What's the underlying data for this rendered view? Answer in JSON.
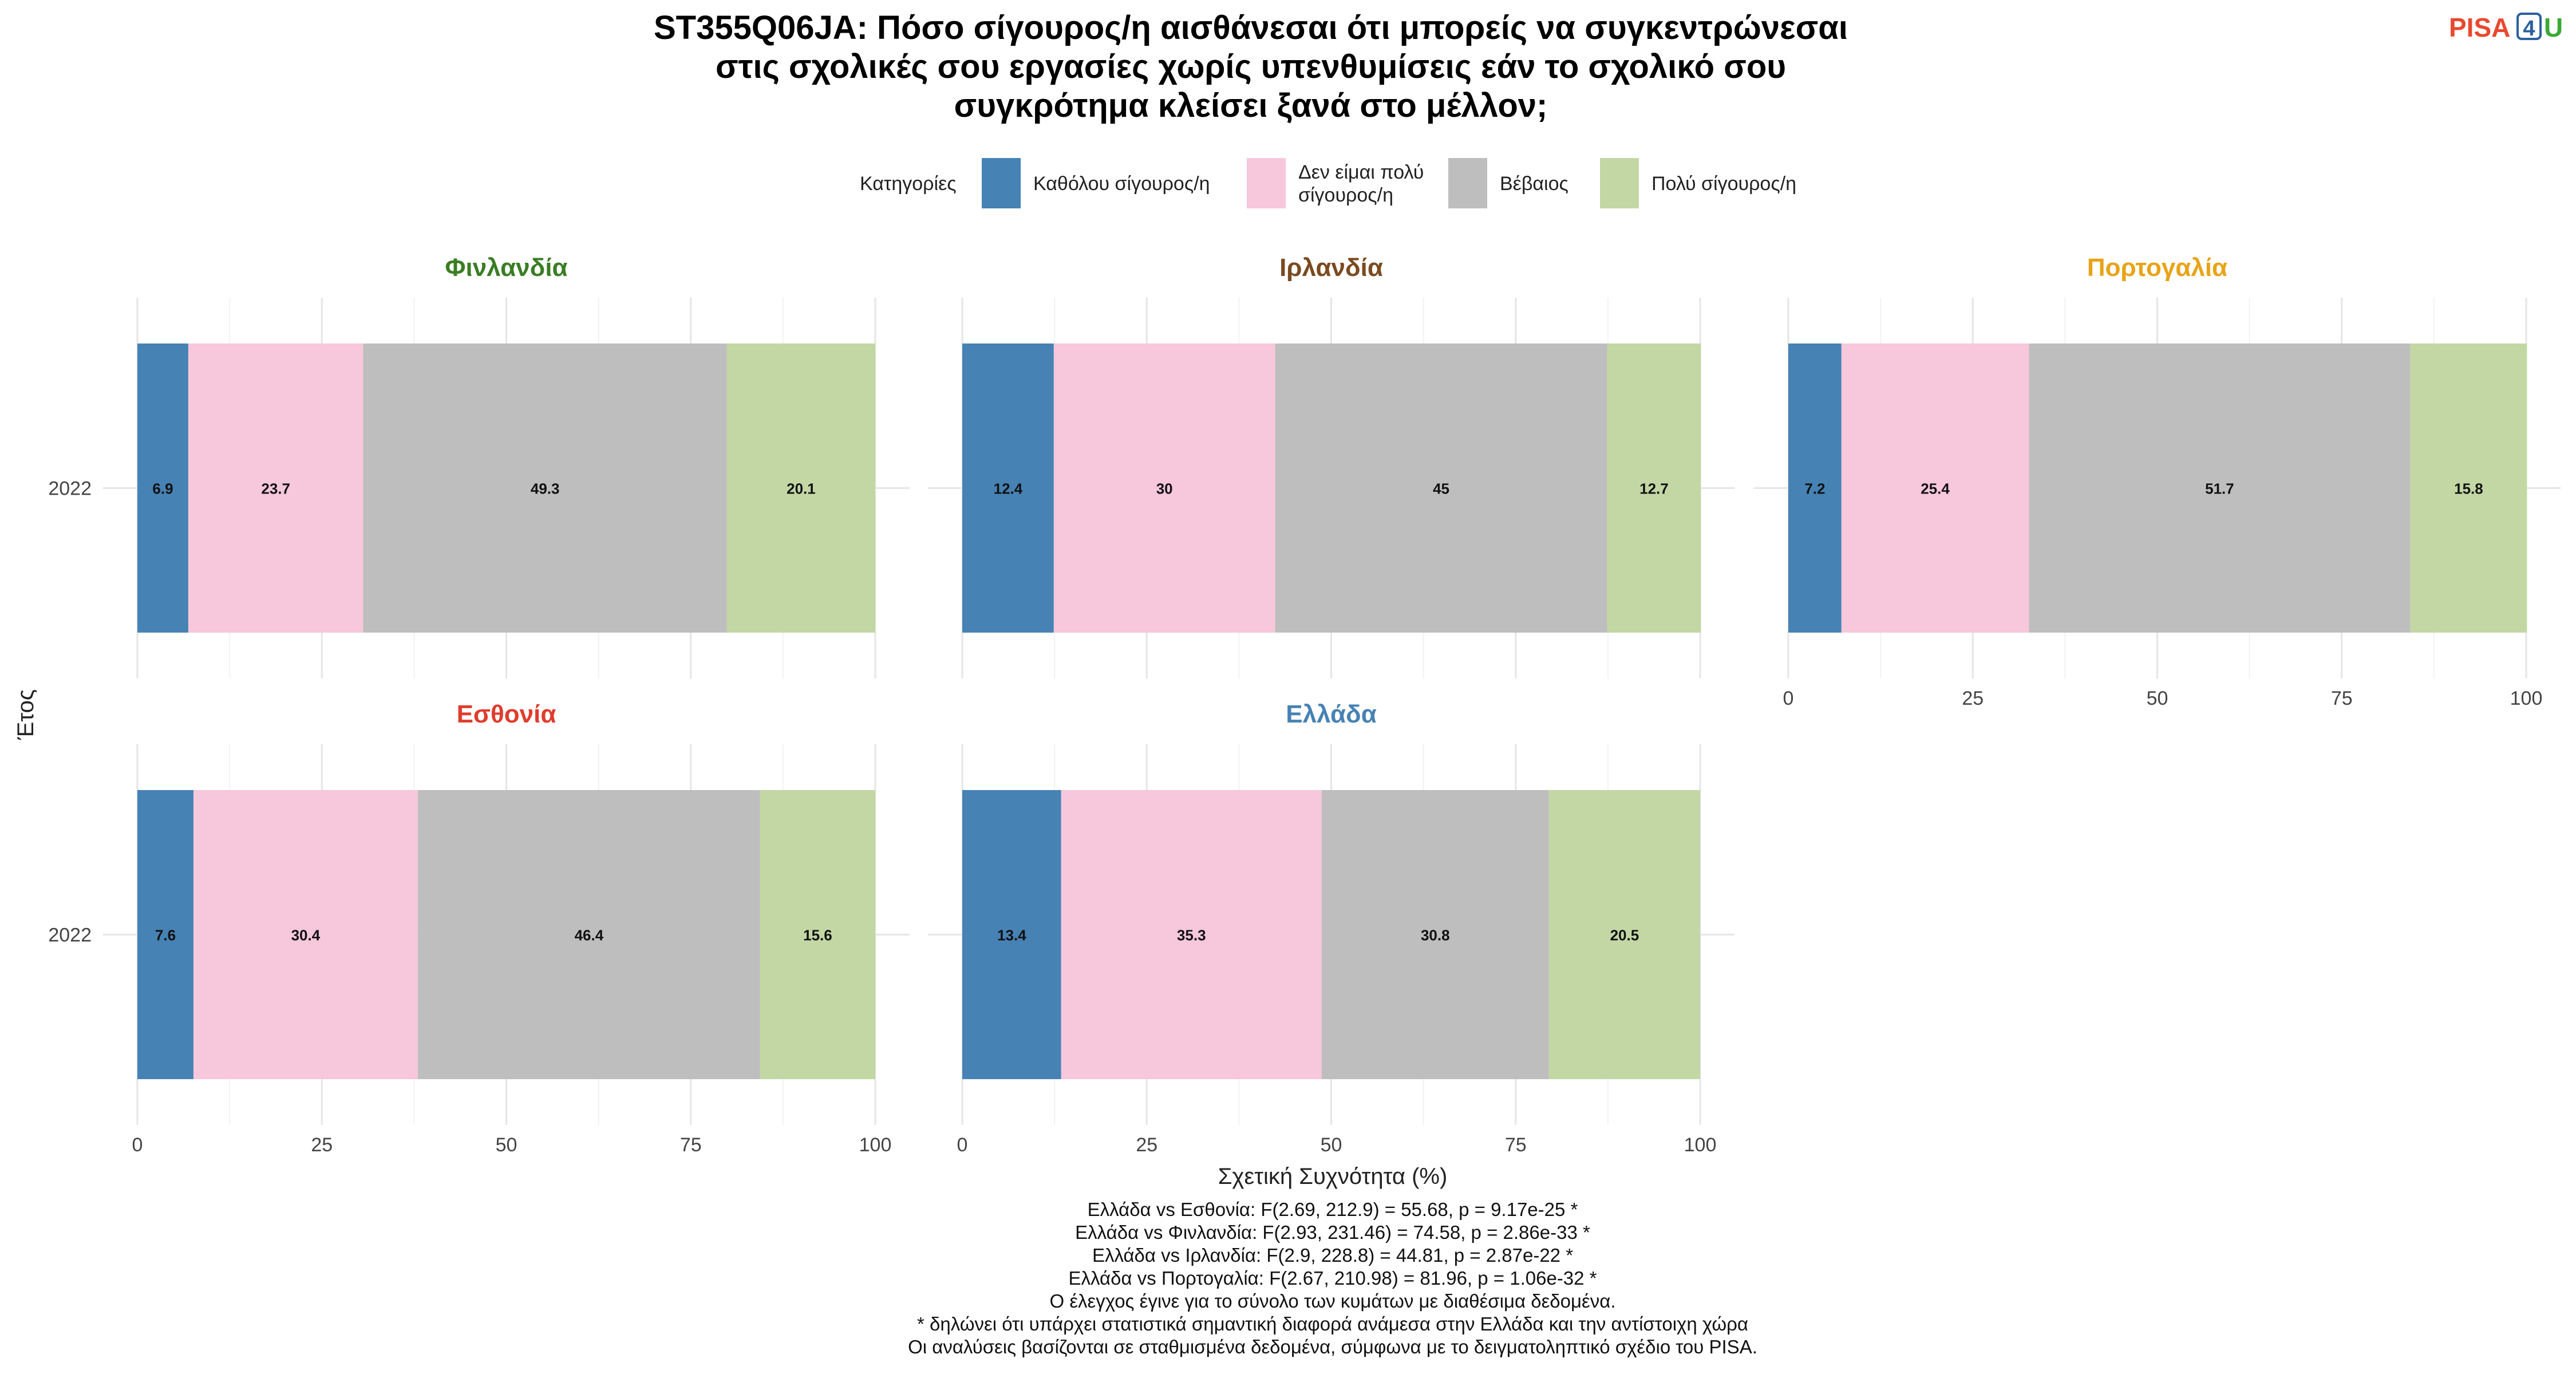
{
  "title": {
    "lines": [
      "ST355Q06JA: Πόσο σίγουρος/η αισθάνεσαι ότι μπορείς να συγκεντρώνεσαι",
      "στις σχολικές σου εργασίες χωρίς υπενθυμίσεις εάν το σχολικό σου",
      "συγκρότημα κλείσει ξανά στο μέλλον;"
    ]
  },
  "logo": {
    "text": "PISA",
    "digit": "4",
    "letter": "U",
    "colors": {
      "pisa": "#e8492f",
      "digit": "#2c5f9e",
      "letter": "#3aa935"
    }
  },
  "legend": {
    "title": "Κατηγορίες",
    "items": [
      {
        "label_lines": [
          "Καθόλου σίγουρος/η"
        ],
        "color": "#4682b4"
      },
      {
        "label_lines": [
          "Δεν είμαι πολύ",
          "σίγουρος/η"
        ],
        "color": "#f7c7dc"
      },
      {
        "label_lines": [
          "Βέβαιος"
        ],
        "color": "#bebebe"
      },
      {
        "label_lines": [
          "Πολύ σίγουρος/η"
        ],
        "color": "#c3d7a4"
      }
    ]
  },
  "axes": {
    "xlabel": "Σχετική Συχνότητα (%)",
    "ylabel": "Έτος",
    "xticks": [
      "0",
      "25",
      "50",
      "75",
      "100"
    ]
  },
  "chart_data": {
    "type": "bar",
    "orientation": "horizontal",
    "stacked": true,
    "xlim": [
      0,
      100
    ],
    "series_names": [
      "Καθόλου σίγουρος/η",
      "Δεν είμαι πολύ σίγουρος/η",
      "Βέβαιος",
      "Πολύ σίγουρος/η"
    ],
    "panels": [
      {
        "country": "Φινλανδία",
        "title_color": "#3a7d24",
        "year": "2022",
        "values": [
          6.9,
          23.7,
          49.3,
          20.1
        ],
        "labels": [
          "6.9",
          "23.7",
          "49.3",
          "20.1"
        ]
      },
      {
        "country": "Ιρλανδία",
        "title_color": "#7a4a1f",
        "year": "2022",
        "values": [
          12.4,
          30,
          45,
          12.7
        ],
        "labels": [
          "12.4",
          "30",
          "45",
          "12.7"
        ]
      },
      {
        "country": "Πορτογαλία",
        "title_color": "#e8a317",
        "year": "2022",
        "values": [
          7.2,
          25.4,
          51.7,
          15.8
        ],
        "labels": [
          "7.2",
          "25.4",
          "51.7",
          "15.8"
        ]
      },
      {
        "country": "Εσθονία",
        "title_color": "#e03c2d",
        "year": "2022",
        "values": [
          7.6,
          30.4,
          46.4,
          15.6
        ],
        "labels": [
          "7.6",
          "30.4",
          "46.4",
          "15.6"
        ]
      },
      {
        "country": "Ελλάδα",
        "title_color": "#4682b4",
        "year": "2022",
        "values": [
          13.4,
          35.3,
          30.8,
          20.5
        ],
        "labels": [
          "13.4",
          "35.3",
          "30.8",
          "20.5"
        ]
      }
    ]
  },
  "footnotes": [
    "Ελλάδα vs Εσθονία: F(2.69, 212.9) = 55.68, p = 9.17e-25 *",
    "Ελλάδα vs Φινλανδία: F(2.93, 231.46) = 74.58, p = 2.86e-33 *",
    "Ελλάδα vs Ιρλανδία: F(2.9, 228.8) = 44.81, p = 2.87e-22 *",
    "Ελλάδα vs Πορτογαλία: F(2.67, 210.98) = 81.96, p = 1.06e-32 *",
    "Ο έλεγχος έγινε για το σύνολο των κυμάτων με διαθέσιμα δεδομένα.",
    "* δηλώνει ότι υπάρχει στατιστικά σημαντική διαφορά ανάμεσα στην Ελλάδα και την αντίστοιχη χώρα",
    "Οι αναλύσεις βασίζονται σε σταθμισμένα δεδομένα, σύμφωνα με το δειγματοληπτικό σχέδιο του PISA."
  ]
}
